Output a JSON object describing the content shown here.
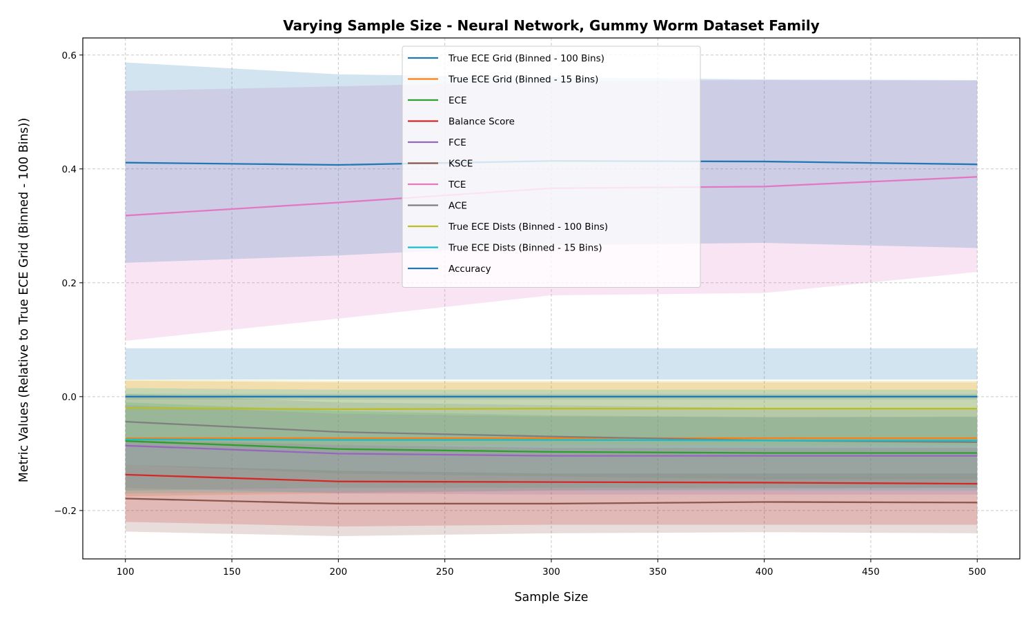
{
  "chart_data": {
    "type": "line",
    "title": "Varying Sample Size - Neural Network, Gummy Worm Dataset Family",
    "xlabel": "Sample Size",
    "ylabel": "Metric Values (Relative to True ECE Grid (Binned - 100 Bins))",
    "x": [
      100,
      200,
      300,
      400,
      500
    ],
    "xlim": [
      80,
      520
    ],
    "ylim": [
      -0.285,
      0.63
    ],
    "xticks": [
      100,
      150,
      200,
      250,
      300,
      350,
      400,
      450,
      500
    ],
    "xtick_labels": [
      "100",
      "150",
      "200",
      "250",
      "300",
      "350",
      "400",
      "450",
      "500"
    ],
    "yticks": [
      -0.2,
      0.0,
      0.2,
      0.4,
      0.6
    ],
    "ytick_labels": [
      "−0.2",
      "0.0",
      "0.2",
      "0.4",
      "0.6"
    ],
    "grid": true,
    "legend_position": "top-center",
    "series": [
      {
        "name": "True ECE Grid (Binned - 100 Bins)",
        "color": "#1f77b4",
        "values": [
          0.0,
          0.0,
          0.0,
          0.0,
          0.0
        ],
        "lower": [
          -0.005,
          -0.005,
          -0.005,
          -0.005,
          -0.005
        ],
        "upper": [
          0.005,
          0.005,
          0.005,
          0.005,
          0.005
        ]
      },
      {
        "name": "True ECE Grid (Binned - 15 Bins)",
        "color": "#ff7f0e",
        "values": [
          -0.073,
          -0.073,
          -0.073,
          -0.073,
          -0.073
        ],
        "lower": [
          -0.175,
          -0.17,
          -0.165,
          -0.162,
          -0.16
        ],
        "upper": [
          0.028,
          0.025,
          0.025,
          0.025,
          0.025
        ]
      },
      {
        "name": "ECE",
        "color": "#2ca02c",
        "values": [
          -0.078,
          -0.092,
          -0.097,
          -0.099,
          -0.099
        ],
        "lower": [
          -0.165,
          -0.16,
          -0.16,
          -0.16,
          -0.16
        ],
        "upper": [
          -0.01,
          -0.025,
          -0.033,
          -0.036,
          -0.035
        ]
      },
      {
        "name": "Balance Score",
        "color": "#d62728",
        "values": [
          -0.137,
          -0.149,
          -0.15,
          -0.151,
          -0.153
        ],
        "lower": [
          -0.22,
          -0.228,
          -0.225,
          -0.225,
          -0.225
        ],
        "upper": [
          -0.075,
          -0.085,
          -0.09,
          -0.09,
          -0.09
        ]
      },
      {
        "name": "FCE",
        "color": "#9467bd",
        "values": [
          -0.086,
          -0.1,
          -0.104,
          -0.104,
          -0.104
        ],
        "lower": [
          -0.16,
          -0.17,
          -0.172,
          -0.172,
          -0.172
        ],
        "upper": [
          -0.015,
          -0.03,
          -0.035,
          -0.036,
          -0.036
        ]
      },
      {
        "name": "KSCE",
        "color": "#8c564b",
        "values": [
          -0.179,
          -0.188,
          -0.188,
          -0.185,
          -0.186
        ],
        "lower": [
          -0.237,
          -0.245,
          -0.24,
          -0.238,
          -0.24
        ],
        "upper": [
          -0.12,
          -0.13,
          -0.135,
          -0.135,
          -0.135
        ]
      },
      {
        "name": "TCE",
        "color": "#e377c2",
        "values": [
          0.318,
          0.341,
          0.366,
          0.369,
          0.386
        ],
        "lower": [
          0.098,
          0.137,
          0.178,
          0.182,
          0.219
        ],
        "upper": [
          0.537,
          0.545,
          0.554,
          0.556,
          0.555
        ]
      },
      {
        "name": "ACE",
        "color": "#7f7f7f",
        "values": [
          -0.044,
          -0.062,
          -0.07,
          -0.077,
          -0.08
        ],
        "lower": [
          -0.12,
          -0.135,
          -0.14,
          -0.145,
          -0.145
        ],
        "upper": [
          0.005,
          -0.01,
          -0.015,
          -0.02,
          -0.02
        ]
      },
      {
        "name": "True ECE Dists (Binned - 100 Bins)",
        "color": "#bcbd22",
        "values": [
          -0.02,
          -0.022,
          -0.021,
          -0.021,
          -0.021
        ],
        "lower": [
          -0.08,
          -0.085,
          -0.085,
          -0.085,
          -0.085
        ],
        "upper": [
          0.03,
          0.028,
          0.028,
          0.028,
          0.028
        ]
      },
      {
        "name": "True ECE Dists (Binned - 15 Bins)",
        "color": "#17becf",
        "values": [
          -0.075,
          -0.076,
          -0.076,
          -0.077,
          -0.077
        ],
        "lower": [
          -0.17,
          -0.168,
          -0.165,
          -0.165,
          -0.165
        ],
        "upper": [
          0.015,
          0.012,
          0.012,
          0.012,
          0.012
        ]
      },
      {
        "name": "Accuracy",
        "color": "#1f77b4",
        "values": [
          0.411,
          0.407,
          0.414,
          0.413,
          0.408
        ],
        "lower": [
          0.235,
          0.248,
          0.266,
          0.27,
          0.261
        ],
        "upper": [
          0.587,
          0.566,
          0.561,
          0.557,
          0.556
        ]
      }
    ],
    "band_fill": {
      "x_range": [
        100,
        500
      ],
      "lower": 0.03,
      "upper": 0.085,
      "color": "#1f77b4"
    }
  }
}
